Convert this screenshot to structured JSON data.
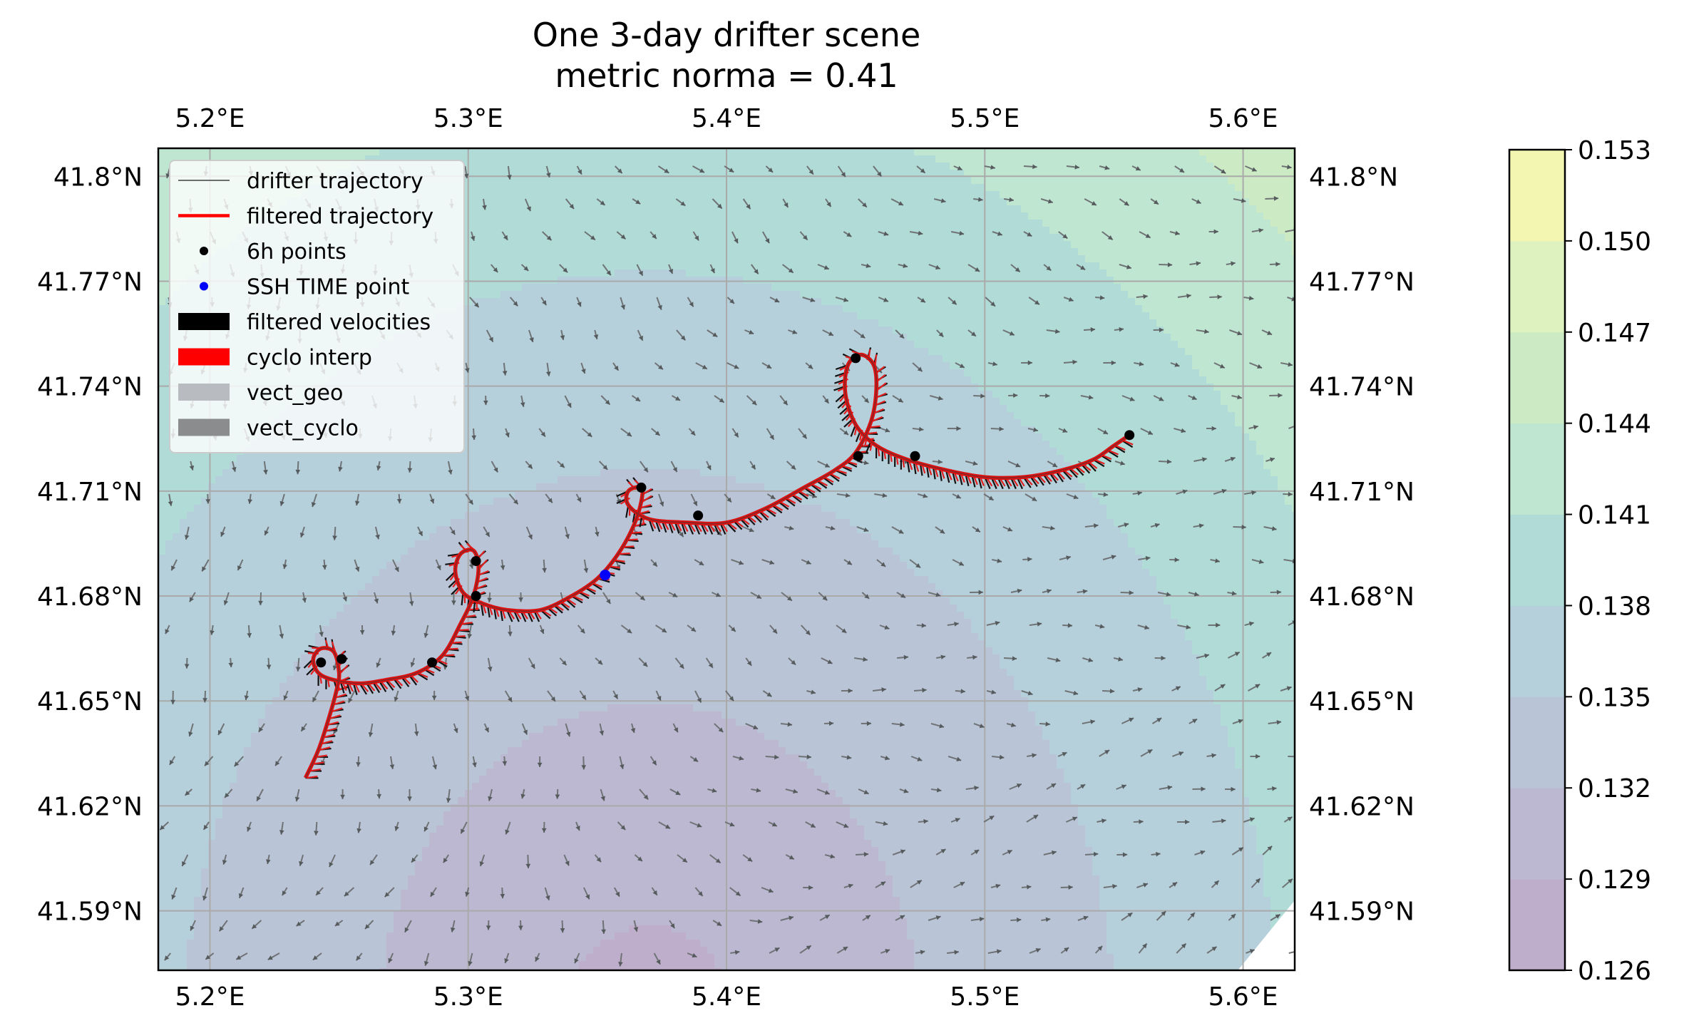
{
  "chart_data": {
    "type": "map",
    "title_lines": [
      "One 3-day drifter scene",
      "metric norma = 0.41"
    ],
    "lon_range": [
      5.18,
      5.62
    ],
    "lat_range": [
      41.573,
      41.808
    ],
    "lon_ticks": [
      5.2,
      5.3,
      5.4,
      5.5,
      5.6
    ],
    "lon_tick_labels": [
      "5.2°E",
      "5.3°E",
      "5.4°E",
      "5.5°E",
      "5.6°E"
    ],
    "lat_ticks": [
      41.59,
      41.62,
      41.65,
      41.68,
      41.71,
      41.74,
      41.77,
      41.8
    ],
    "lat_tick_labels": [
      "41.59°N",
      "41.62°N",
      "41.65°N",
      "41.68°N",
      "41.71°N",
      "41.74°N",
      "41.77°N",
      "41.8°N"
    ],
    "grid": true,
    "legend_position": "top-left",
    "legend": [
      {
        "label": "drifter trajectory",
        "kind": "thin-line",
        "color": "#404040"
      },
      {
        "label": "filtered trajectory",
        "kind": "line",
        "color": "#ff0000"
      },
      {
        "label": "6h points",
        "kind": "dot",
        "color": "#000000"
      },
      {
        "label": "SSH TIME point",
        "kind": "dot",
        "color": "#0000ff"
      },
      {
        "label": "filtered velocities",
        "kind": "patch",
        "color": "#000000"
      },
      {
        "label": "cyclo interp",
        "kind": "patch",
        "color": "#ff0000"
      },
      {
        "label": "vect_geo",
        "kind": "patch",
        "color": "#b8bcc0"
      },
      {
        "label": "vect_cyclo",
        "kind": "patch",
        "color": "#8a8c8e"
      }
    ],
    "colorbar": {
      "levels": [
        0.126,
        0.129,
        0.132,
        0.135,
        0.138,
        0.141,
        0.144,
        0.147,
        0.15,
        0.153
      ],
      "tick_labels": [
        "0.126",
        "0.129",
        "0.132",
        "0.135",
        "0.138",
        "0.141",
        "0.144",
        "0.147",
        "0.150",
        "0.153"
      ],
      "colors": [
        "#bfaecb",
        "#bcb8d2",
        "#bac4d7",
        "#b5cfdb",
        "#b0dbd6",
        "#bfe6d1",
        "#ccebc5",
        "#ddf2bf",
        "#f2f6b0"
      ]
    },
    "ssh_field": {
      "center": [
        5.37,
        41.555
      ],
      "radius_lon": 0.19,
      "radius_lat": 0.17,
      "min_value": 0.1275,
      "max_value": 0.153
    },
    "drifter_track": [
      [
        5.237,
        41.628
      ],
      [
        5.242,
        41.636
      ],
      [
        5.246,
        41.645
      ],
      [
        5.249,
        41.653
      ],
      [
        5.25,
        41.658
      ],
      [
        5.248,
        41.664
      ],
      [
        5.243,
        41.665
      ],
      [
        5.24,
        41.662
      ],
      [
        5.242,
        41.658
      ],
      [
        5.248,
        41.656
      ],
      [
        5.258,
        41.655
      ],
      [
        5.268,
        41.656
      ],
      [
        5.28,
        41.658
      ],
      [
        5.29,
        41.663
      ],
      [
        5.297,
        41.672
      ],
      [
        5.302,
        41.68
      ],
      [
        5.304,
        41.688
      ],
      [
        5.302,
        41.693
      ],
      [
        5.297,
        41.692
      ],
      [
        5.295,
        41.687
      ],
      [
        5.298,
        41.681
      ],
      [
        5.305,
        41.678
      ],
      [
        5.315,
        41.676
      ],
      [
        5.328,
        41.676
      ],
      [
        5.34,
        41.68
      ],
      [
        5.35,
        41.685
      ],
      [
        5.358,
        41.692
      ],
      [
        5.364,
        41.7
      ],
      [
        5.367,
        41.707
      ],
      [
        5.367,
        41.711
      ],
      [
        5.362,
        41.71
      ],
      [
        5.362,
        41.706
      ],
      [
        5.37,
        41.702
      ],
      [
        5.385,
        41.701
      ],
      [
        5.4,
        41.701
      ],
      [
        5.415,
        41.705
      ],
      [
        5.43,
        41.711
      ],
      [
        5.442,
        41.716
      ],
      [
        5.45,
        41.721
      ],
      [
        5.456,
        41.73
      ],
      [
        5.458,
        41.739
      ],
      [
        5.457,
        41.746
      ],
      [
        5.452,
        41.749
      ],
      [
        5.447,
        41.746
      ],
      [
        5.446,
        41.738
      ],
      [
        5.45,
        41.729
      ],
      [
        5.458,
        41.723
      ],
      [
        5.47,
        41.719
      ],
      [
        5.485,
        41.716
      ],
      [
        5.5,
        41.714
      ],
      [
        5.515,
        41.714
      ],
      [
        5.53,
        41.716
      ],
      [
        5.542,
        41.719
      ],
      [
        5.55,
        41.723
      ],
      [
        5.556,
        41.726
      ]
    ],
    "points_6h": [
      [
        5.243,
        41.661
      ],
      [
        5.251,
        41.662
      ],
      [
        5.286,
        41.661
      ],
      [
        5.303,
        41.68
      ],
      [
        5.303,
        41.69
      ],
      [
        5.367,
        41.711
      ],
      [
        5.389,
        41.703
      ],
      [
        5.451,
        41.72
      ],
      [
        5.473,
        41.72
      ],
      [
        5.45,
        41.748
      ],
      [
        5.556,
        41.726
      ]
    ],
    "ssh_time_point": [
      5.353,
      41.686
    ]
  }
}
